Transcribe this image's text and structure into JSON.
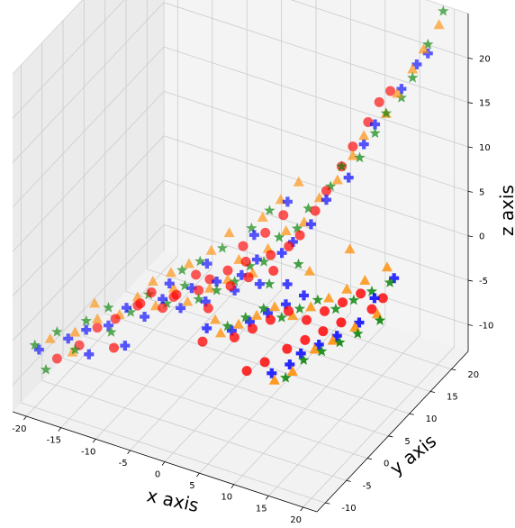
{
  "chart_data": {
    "type": "scatter",
    "projection": "3d",
    "xlabel": "x axis",
    "ylabel": "y axis",
    "zlabel": "z axis",
    "xlim": [
      -22,
      22
    ],
    "ylim": [
      -12,
      24
    ],
    "zlim": [
      -13,
      25
    ],
    "xticks": [
      -20,
      -15,
      -10,
      -5,
      0,
      5,
      10,
      15,
      20
    ],
    "yticks": [
      -10,
      -5,
      0,
      5,
      10,
      15,
      20
    ],
    "zticks": [
      -10,
      -5,
      0,
      5,
      10,
      15,
      20
    ],
    "grid": true,
    "series": [
      {
        "marker": "circle",
        "color": "#ff0000",
        "points": [
          [
            -18,
            -8,
            -8
          ],
          [
            -16,
            -6,
            -7
          ],
          [
            -14,
            -5,
            -5
          ],
          [
            -12,
            -4,
            -4
          ],
          [
            -10,
            -2,
            -3
          ],
          [
            -9,
            -3,
            -2
          ],
          [
            -7,
            -1,
            -3
          ],
          [
            -6,
            0,
            -2
          ],
          [
            -5,
            -1,
            -1
          ],
          [
            -3,
            1,
            -1
          ],
          [
            -2,
            2,
            0
          ],
          [
            -1,
            0,
            -2
          ],
          [
            0,
            3,
            1
          ],
          [
            1,
            2,
            0
          ],
          [
            2,
            4,
            2
          ],
          [
            3,
            3,
            1
          ],
          [
            5,
            5,
            3
          ],
          [
            6,
            4,
            2
          ],
          [
            7,
            6,
            4
          ],
          [
            8,
            7,
            5
          ],
          [
            9,
            9,
            7
          ],
          [
            10,
            10,
            9
          ],
          [
            11,
            12,
            11
          ],
          [
            12,
            13,
            13
          ],
          [
            13,
            15,
            15
          ],
          [
            14,
            16,
            17
          ],
          [
            15,
            17,
            18
          ],
          [
            5,
            8,
            6
          ],
          [
            3,
            7,
            4
          ],
          [
            1,
            5,
            3
          ],
          [
            -4,
            2,
            0
          ],
          [
            -8,
            -2,
            -1
          ],
          [
            4,
            -2,
            -3
          ],
          [
            6,
            -1,
            -2
          ],
          [
            8,
            0,
            -1
          ],
          [
            10,
            1,
            0
          ],
          [
            12,
            2,
            -1
          ],
          [
            14,
            3,
            0
          ],
          [
            16,
            4,
            1
          ],
          [
            18,
            5,
            2
          ],
          [
            11,
            -1,
            -3
          ],
          [
            13,
            0,
            -2
          ],
          [
            15,
            1,
            -1
          ],
          [
            17,
            2,
            0
          ],
          [
            9,
            -3,
            -4
          ],
          [
            7,
            -4,
            -5
          ],
          [
            19,
            6,
            0
          ],
          [
            20,
            7,
            1
          ],
          [
            -11,
            -6,
            -6
          ],
          [
            0,
            -3,
            -4
          ]
        ]
      },
      {
        "marker": "plus",
        "color": "#0000ff",
        "points": [
          [
            -20,
            -9,
            -7
          ],
          [
            -17,
            -7,
            -6
          ],
          [
            -15,
            -6,
            -5
          ],
          [
            -13,
            -4,
            -5
          ],
          [
            -11,
            -3,
            -3
          ],
          [
            -9,
            -2,
            -4
          ],
          [
            -7,
            -1,
            -2
          ],
          [
            -5,
            0,
            -3
          ],
          [
            -4,
            1,
            -1
          ],
          [
            -2,
            1,
            -2
          ],
          [
            -1,
            2,
            0
          ],
          [
            1,
            3,
            -1
          ],
          [
            2,
            3,
            1
          ],
          [
            3,
            5,
            2
          ],
          [
            4,
            4,
            0
          ],
          [
            6,
            6,
            3
          ],
          [
            7,
            7,
            4
          ],
          [
            9,
            8,
            6
          ],
          [
            10,
            10,
            8
          ],
          [
            12,
            12,
            10
          ],
          [
            13,
            14,
            13
          ],
          [
            14,
            15,
            15
          ],
          [
            16,
            18,
            18
          ],
          [
            17,
            20,
            20
          ],
          [
            18,
            21,
            21
          ],
          [
            5,
            9,
            7
          ],
          [
            2,
            6,
            4
          ],
          [
            -3,
            3,
            1
          ],
          [
            -6,
            -1,
            0
          ],
          [
            3,
            -1,
            -3
          ],
          [
            5,
            0,
            -2
          ],
          [
            7,
            1,
            -1
          ],
          [
            9,
            2,
            0
          ],
          [
            11,
            3,
            1
          ],
          [
            13,
            -1,
            -3
          ],
          [
            15,
            0,
            -2
          ],
          [
            17,
            1,
            -1
          ],
          [
            19,
            3,
            0
          ],
          [
            20,
            5,
            2
          ],
          [
            21,
            8,
            3
          ],
          [
            12,
            -2,
            -4
          ],
          [
            10,
            -3,
            -5
          ],
          [
            -10,
            -5,
            -6
          ],
          [
            -14,
            -7,
            -7
          ],
          [
            0,
            -2,
            -3
          ],
          [
            8,
            4,
            1
          ]
        ]
      },
      {
        "marker": "triangle",
        "color": "#ff8c00",
        "points": [
          [
            -19,
            -8,
            -6
          ],
          [
            -16,
            -7,
            -5
          ],
          [
            -14,
            -5,
            -4
          ],
          [
            -12,
            -3,
            -4
          ],
          [
            -10,
            -2,
            -2
          ],
          [
            -8,
            -1,
            -3
          ],
          [
            -6,
            0,
            -1
          ],
          [
            -4,
            0,
            -2
          ],
          [
            -2,
            2,
            -1
          ],
          [
            0,
            3,
            0
          ],
          [
            1,
            4,
            2
          ],
          [
            3,
            4,
            1
          ],
          [
            4,
            6,
            3
          ],
          [
            6,
            7,
            5
          ],
          [
            8,
            8,
            6
          ],
          [
            9,
            10,
            8
          ],
          [
            11,
            11,
            10
          ],
          [
            12,
            13,
            12
          ],
          [
            13,
            14,
            14
          ],
          [
            15,
            16,
            16
          ],
          [
            16,
            17,
            18
          ],
          [
            17,
            19,
            20
          ],
          [
            18,
            20,
            22
          ],
          [
            19,
            22,
            24
          ],
          [
            6,
            10,
            9
          ],
          [
            4,
            9,
            7
          ],
          [
            2,
            8,
            5
          ],
          [
            -1,
            5,
            4
          ],
          [
            -3,
            4,
            2
          ],
          [
            -5,
            2,
            1
          ],
          [
            -7,
            1,
            0
          ],
          [
            -9,
            0,
            -1
          ],
          [
            2,
            -2,
            -3
          ],
          [
            4,
            -1,
            -2
          ],
          [
            6,
            0,
            -1
          ],
          [
            8,
            1,
            0
          ],
          [
            10,
            2,
            -1
          ],
          [
            12,
            3,
            0
          ],
          [
            14,
            4,
            1
          ],
          [
            16,
            5,
            2
          ],
          [
            18,
            6,
            3
          ],
          [
            20,
            8,
            4
          ],
          [
            15,
            -1,
            -2
          ],
          [
            17,
            0,
            -1
          ],
          [
            19,
            2,
            0
          ],
          [
            21,
            4,
            1
          ],
          [
            13,
            -3,
            -4
          ],
          [
            11,
            -4,
            -5
          ],
          [
            -15,
            -4,
            -3
          ],
          [
            -17,
            -6,
            -8
          ],
          [
            0,
            0,
            -3
          ],
          [
            10,
            6,
            2
          ],
          [
            14,
            9,
            4
          ]
        ]
      },
      {
        "marker": "star",
        "color": "#008000",
        "points": [
          [
            -20,
            -10,
            -6
          ],
          [
            -18,
            -8,
            -5
          ],
          [
            -15,
            -6,
            -4
          ],
          [
            -13,
            -4,
            -3
          ],
          [
            -11,
            -2,
            -4
          ],
          [
            -9,
            -1,
            -2
          ],
          [
            -7,
            0,
            -3
          ],
          [
            -5,
            1,
            -1
          ],
          [
            -3,
            1,
            -2
          ],
          [
            -1,
            2,
            -1
          ],
          [
            1,
            3,
            0
          ],
          [
            2,
            5,
            1
          ],
          [
            4,
            5,
            2
          ],
          [
            5,
            7,
            4
          ],
          [
            7,
            8,
            5
          ],
          [
            8,
            9,
            7
          ],
          [
            10,
            11,
            9
          ],
          [
            11,
            12,
            11
          ],
          [
            13,
            13,
            12
          ],
          [
            14,
            15,
            14
          ],
          [
            15,
            16,
            16
          ],
          [
            16,
            18,
            17
          ],
          [
            17,
            19,
            19
          ],
          [
            18,
            21,
            22
          ],
          [
            19,
            23,
            25
          ],
          [
            3,
            8,
            6
          ],
          [
            1,
            7,
            4
          ],
          [
            -2,
            5,
            2
          ],
          [
            -4,
            3,
            1
          ],
          [
            -6,
            2,
            0
          ],
          [
            3,
            -2,
            -2
          ],
          [
            5,
            -1,
            -1
          ],
          [
            7,
            0,
            0
          ],
          [
            9,
            1,
            -1
          ],
          [
            11,
            2,
            0
          ],
          [
            13,
            3,
            1
          ],
          [
            15,
            4,
            0
          ],
          [
            17,
            5,
            1
          ],
          [
            19,
            6,
            2
          ],
          [
            21,
            7,
            3
          ],
          [
            14,
            -2,
            -3
          ],
          [
            16,
            -1,
            -2
          ],
          [
            18,
            0,
            -1
          ],
          [
            20,
            1,
            0
          ],
          [
            22,
            3,
            1
          ],
          [
            12,
            -3,
            -5
          ],
          [
            -12,
            -5,
            -5
          ],
          [
            -16,
            -7,
            -7
          ],
          [
            -19,
            -9,
            -9
          ],
          [
            6,
            3,
            1
          ],
          [
            9,
            5,
            3
          ]
        ]
      }
    ]
  }
}
